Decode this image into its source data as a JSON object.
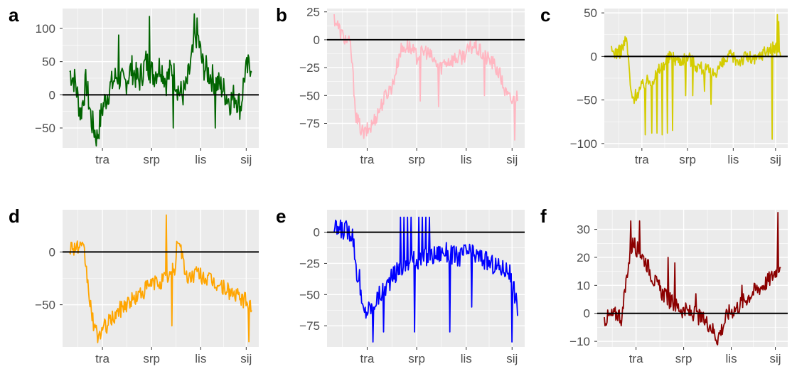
{
  "chart_data": [
    {
      "panel": "a",
      "type": "line",
      "color": "#006400",
      "x_ticks": [
        "tra",
        "srp",
        "lis",
        "sij"
      ],
      "yticks": [
        -50,
        0,
        50,
        100
      ],
      "ylim": [
        -80,
        130
      ],
      "reference_line": 0,
      "grid": true,
      "series": [
        {
          "anchors": [
            [
              0,
              35
            ],
            [
              0.03,
              20
            ],
            [
              0.06,
              -30
            ],
            [
              0.09,
              20
            ],
            [
              0.12,
              -40
            ],
            [
              0.15,
              -65
            ],
            [
              0.18,
              -20
            ],
            [
              0.22,
              10
            ],
            [
              0.26,
              30
            ],
            [
              0.3,
              15
            ],
            [
              0.34,
              40
            ],
            [
              0.38,
              20
            ],
            [
              0.42,
              50
            ],
            [
              0.46,
              30
            ],
            [
              0.5,
              45
            ],
            [
              0.53,
              20
            ],
            [
              0.56,
              40
            ],
            [
              0.58,
              25
            ],
            [
              0.6,
              5
            ],
            [
              0.62,
              0
            ],
            [
              0.64,
              10
            ],
            [
              0.7,
              95
            ],
            [
              0.73,
              45
            ],
            [
              0.77,
              30
            ],
            [
              0.8,
              20
            ],
            [
              0.84,
              10
            ],
            [
              0.88,
              -10
            ],
            [
              0.91,
              0
            ],
            [
              0.94,
              -20
            ],
            [
              0.96,
              30
            ],
            [
              1.0,
              50
            ]
          ],
          "amp": 22,
          "spikes": [
            [
              0.27,
              90
            ],
            [
              0.44,
              118
            ],
            [
              0.685,
              122
            ],
            [
              0.8,
              -50
            ],
            [
              0.57,
              -50
            ]
          ]
        }
      ]
    },
    {
      "panel": "b",
      "type": "line",
      "color": "#ffb6c1",
      "x_ticks": [
        "tra",
        "srp",
        "lis",
        "sij"
      ],
      "yticks": [
        -75,
        -50,
        -25,
        0,
        25
      ],
      "ylim": [
        -97,
        28
      ],
      "reference_line": 0,
      "grid": true,
      "series": [
        {
          "anchors": [
            [
              0,
              20
            ],
            [
              0.04,
              5
            ],
            [
              0.09,
              -5
            ],
            [
              0.12,
              -70
            ],
            [
              0.16,
              -85
            ],
            [
              0.2,
              -78
            ],
            [
              0.24,
              -65
            ],
            [
              0.28,
              -50
            ],
            [
              0.32,
              -40
            ],
            [
              0.36,
              -10
            ],
            [
              0.4,
              -5
            ],
            [
              0.45,
              -15
            ],
            [
              0.5,
              -10
            ],
            [
              0.55,
              -20
            ],
            [
              0.58,
              -25
            ],
            [
              0.6,
              -20
            ],
            [
              0.7,
              -15
            ],
            [
              0.76,
              -5
            ],
            [
              0.82,
              -15
            ],
            [
              0.86,
              -20
            ],
            [
              0.9,
              -30
            ],
            [
              0.94,
              -50
            ],
            [
              0.97,
              -55
            ],
            [
              1.0,
              -50
            ]
          ],
          "amp": 7,
          "spikes": [
            [
              0.47,
              -55
            ],
            [
              0.57,
              -60
            ],
            [
              0.82,
              -50
            ],
            [
              0.985,
              -90
            ]
          ]
        }
      ]
    },
    {
      "panel": "c",
      "type": "line",
      "color": "#d4cc00",
      "x_ticks": [
        "tra",
        "srp",
        "lis",
        "sij"
      ],
      "yticks": [
        -100,
        -50,
        0,
        50
      ],
      "ylim": [
        -105,
        55
      ],
      "reference_line": 0,
      "grid": true,
      "series": [
        {
          "anchors": [
            [
              0,
              5
            ],
            [
              0.05,
              5
            ],
            [
              0.09,
              20
            ],
            [
              0.12,
              -50
            ],
            [
              0.16,
              -40
            ],
            [
              0.2,
              -30
            ],
            [
              0.25,
              -25
            ],
            [
              0.3,
              -10
            ],
            [
              0.35,
              0
            ],
            [
              0.4,
              -5
            ],
            [
              0.45,
              0
            ],
            [
              0.5,
              -10
            ],
            [
              0.55,
              -15
            ],
            [
              0.6,
              -20
            ],
            [
              0.65,
              -10
            ],
            [
              0.7,
              0
            ],
            [
              0.75,
              -5
            ],
            [
              0.8,
              0
            ],
            [
              0.85,
              -5
            ],
            [
              0.9,
              5
            ],
            [
              0.95,
              10
            ],
            [
              1.0,
              5
            ]
          ],
          "amp": 8,
          "spikes": [
            [
              0.2,
              -90
            ],
            [
              0.24,
              -88
            ],
            [
              0.27,
              -88
            ],
            [
              0.3,
              -90
            ],
            [
              0.33,
              -88
            ],
            [
              0.36,
              -85
            ],
            [
              0.44,
              -45
            ],
            [
              0.48,
              -45
            ],
            [
              0.55,
              -40
            ],
            [
              0.59,
              -55
            ],
            [
              0.95,
              -95
            ],
            [
              0.98,
              48
            ],
            [
              0.99,
              40
            ]
          ]
        }
      ]
    },
    {
      "panel": "d",
      "type": "line",
      "color": "#ffa500",
      "x_ticks": [
        "tra",
        "srp",
        "lis",
        "sij"
      ],
      "yticks": [
        -50,
        0
      ],
      "ylim": [
        -90,
        40
      ],
      "reference_line": 0,
      "grid": true,
      "series": [
        {
          "anchors": [
            [
              0,
              5
            ],
            [
              0.04,
              5
            ],
            [
              0.08,
              0
            ],
            [
              0.12,
              -60
            ],
            [
              0.15,
              -80
            ],
            [
              0.2,
              -70
            ],
            [
              0.25,
              -60
            ],
            [
              0.3,
              -50
            ],
            [
              0.35,
              -45
            ],
            [
              0.4,
              -38
            ],
            [
              0.45,
              -30
            ],
            [
              0.5,
              -28
            ],
            [
              0.55,
              -22
            ],
            [
              0.58,
              -15
            ],
            [
              0.6,
              15
            ],
            [
              0.64,
              -25
            ],
            [
              0.7,
              -20
            ],
            [
              0.75,
              -25
            ],
            [
              0.8,
              -30
            ],
            [
              0.86,
              -35
            ],
            [
              0.9,
              -40
            ],
            [
              0.95,
              -45
            ],
            [
              1.0,
              -50
            ]
          ],
          "amp": 8,
          "spikes": [
            [
              0.53,
              35
            ],
            [
              0.56,
              -70
            ],
            [
              0.985,
              -85
            ],
            [
              0.59,
              10
            ]
          ]
        }
      ]
    },
    {
      "panel": "e",
      "type": "line",
      "color": "#0000ff",
      "x_ticks": [
        "tra",
        "srp",
        "lis",
        "sij"
      ],
      "yticks": [
        -75,
        -50,
        -25,
        0
      ],
      "ylim": [
        -92,
        18
      ],
      "reference_line": 0,
      "grid": true,
      "series": [
        {
          "anchors": [
            [
              0,
              2
            ],
            [
              0.06,
              2
            ],
            [
              0.1,
              0
            ],
            [
              0.13,
              -40
            ],
            [
              0.16,
              -65
            ],
            [
              0.2,
              -60
            ],
            [
              0.25,
              -50
            ],
            [
              0.3,
              -40
            ],
            [
              0.35,
              -30
            ],
            [
              0.4,
              -25
            ],
            [
              0.45,
              -22
            ],
            [
              0.5,
              -20
            ],
            [
              0.55,
              -18
            ],
            [
              0.6,
              -15
            ],
            [
              0.68,
              -20
            ],
            [
              0.72,
              -15
            ],
            [
              0.76,
              -18
            ],
            [
              0.8,
              -20
            ],
            [
              0.85,
              -25
            ],
            [
              0.9,
              -28
            ],
            [
              0.95,
              -30
            ],
            [
              0.98,
              -45
            ],
            [
              1.0,
              -62
            ]
          ],
          "amp": 8,
          "spikes": [
            [
              0.14,
              -30
            ],
            [
              0.21,
              -88
            ],
            [
              0.27,
              -80
            ],
            [
              0.36,
              12
            ],
            [
              0.38,
              12
            ],
            [
              0.4,
              12
            ],
            [
              0.42,
              12
            ],
            [
              0.44,
              12
            ],
            [
              0.46,
              12
            ],
            [
              0.48,
              12
            ],
            [
              0.5,
              12
            ],
            [
              0.52,
              12
            ],
            [
              0.44,
              -80
            ],
            [
              0.63,
              -80
            ],
            [
              0.75,
              -60
            ],
            [
              0.97,
              -88
            ]
          ]
        }
      ]
    },
    {
      "panel": "f",
      "type": "line",
      "color": "#8b0000",
      "x_ticks": [
        "tra",
        "srp",
        "lis",
        "sij"
      ],
      "yticks": [
        -10,
        0,
        10,
        20,
        30
      ],
      "ylim": [
        -12,
        37
      ],
      "reference_line": 0,
      "grid": true,
      "series": [
        {
          "anchors": [
            [
              0,
              -2
            ],
            [
              0.04,
              -1
            ],
            [
              0.08,
              0
            ],
            [
              0.1,
              -2
            ],
            [
              0.13,
              15
            ],
            [
              0.16,
              25
            ],
            [
              0.2,
              22
            ],
            [
              0.24,
              18
            ],
            [
              0.28,
              12
            ],
            [
              0.32,
              8
            ],
            [
              0.36,
              5
            ],
            [
              0.4,
              3
            ],
            [
              0.45,
              1
            ],
            [
              0.5,
              0
            ],
            [
              0.55,
              -2
            ],
            [
              0.6,
              -4
            ],
            [
              0.64,
              -9
            ],
            [
              0.67,
              -5
            ],
            [
              0.7,
              0
            ],
            [
              0.75,
              2
            ],
            [
              0.8,
              5
            ],
            [
              0.85,
              8
            ],
            [
              0.9,
              10
            ],
            [
              0.95,
              13
            ],
            [
              1.0,
              18
            ]
          ],
          "amp": 3,
          "spikes": [
            [
              0.15,
              33
            ],
            [
              0.2,
              33
            ],
            [
              0.36,
              20
            ],
            [
              0.4,
              18
            ],
            [
              0.52,
              7
            ],
            [
              0.78,
              10
            ],
            [
              0.985,
              36
            ]
          ]
        }
      ]
    }
  ]
}
